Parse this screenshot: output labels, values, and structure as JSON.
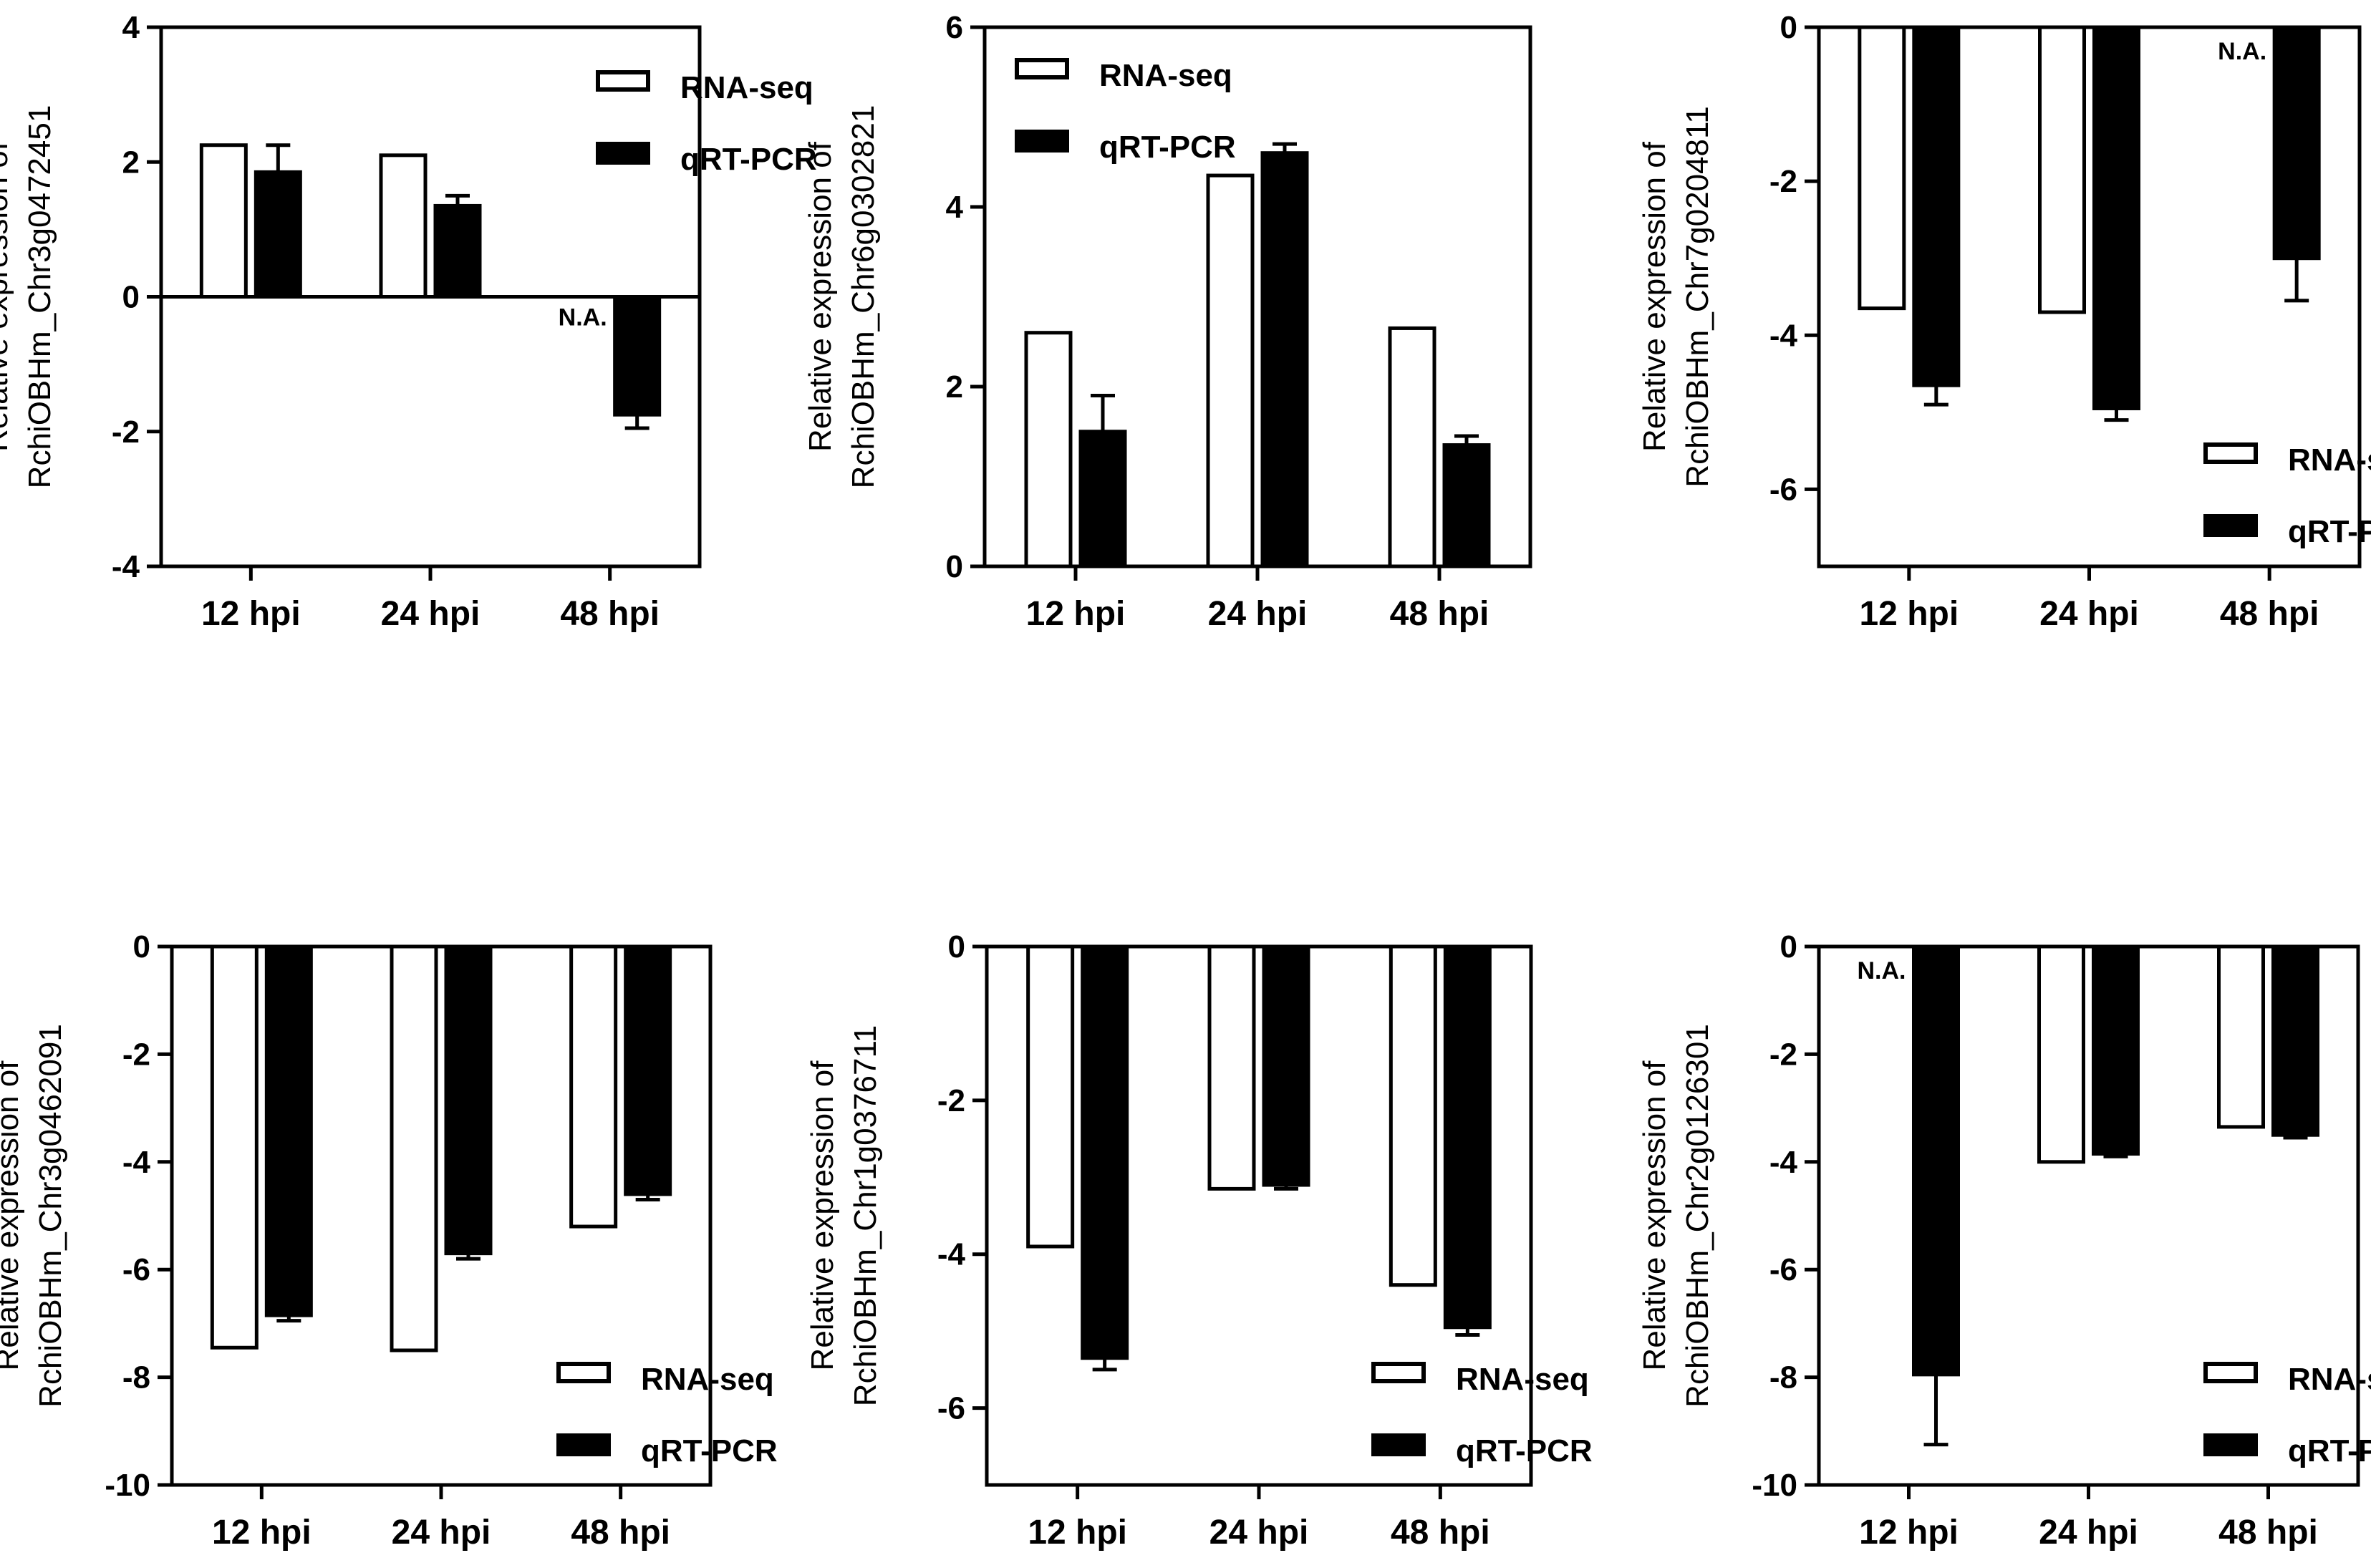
{
  "colors": {
    "rna_seq_fill": "#ffffff",
    "qrt_pcr_fill": "#000000",
    "stroke": "#000000"
  },
  "chart_data": [
    {
      "type": "bar",
      "ylabel_lines": [
        "Relative expression of",
        "RchiOBHm_Chr3g0472451"
      ],
      "categories": [
        "12 hpi",
        "24 hpi",
        "48 hpi"
      ],
      "ylim": [
        -4,
        4
      ],
      "yticks": [
        -4,
        -2,
        0,
        2,
        4
      ],
      "tick_labels": [
        "-4",
        "-2",
        "0",
        "2",
        "4"
      ],
      "legend": {
        "position": "top-right",
        "entries": [
          "RNA-seq",
          "qRT-PCR"
        ]
      },
      "series": [
        {
          "name": "RNA-seq",
          "values": [
            2.25,
            2.1,
            null
          ]
        },
        {
          "name": "qRT-PCR",
          "values": [
            1.85,
            1.35,
            -1.75
          ],
          "errors": [
            0.4,
            0.15,
            0.2
          ]
        }
      ],
      "annotations": [
        {
          "text": "N.A.",
          "series": 0,
          "category": 2
        }
      ]
    },
    {
      "type": "bar",
      "ylabel_lines": [
        "Relative expression of",
        "RchiOBHm_Chr6g0302821"
      ],
      "categories": [
        "12 hpi",
        "24 hpi",
        "48 hpi"
      ],
      "ylim": [
        0,
        6
      ],
      "yticks": [
        0,
        2,
        4,
        6
      ],
      "tick_labels": [
        "0",
        "2",
        "4",
        "6"
      ],
      "legend": {
        "position": "top-left",
        "entries": [
          "RNA-seq",
          "qRT-PCR"
        ]
      },
      "series": [
        {
          "name": "RNA-seq",
          "values": [
            2.6,
            4.35,
            2.65
          ]
        },
        {
          "name": "qRT-PCR",
          "values": [
            1.5,
            4.6,
            1.35
          ],
          "errors": [
            0.4,
            0.1,
            0.1
          ]
        }
      ],
      "annotations": []
    },
    {
      "type": "bar",
      "ylabel_lines": [
        "Relative expression of",
        "RchiOBHm_Chr7g0204811"
      ],
      "categories": [
        "12 hpi",
        "24 hpi",
        "48 hpi"
      ],
      "ylim": [
        -7,
        0
      ],
      "yticks": [
        -6,
        -4,
        -2,
        0
      ],
      "tick_labels": [
        "-6",
        "-4",
        "-2",
        "0"
      ],
      "legend": {
        "position": "bottom-right",
        "entries": [
          "RNA-seq",
          "qRT-PCR"
        ]
      },
      "series": [
        {
          "name": "RNA-seq",
          "values": [
            -3.65,
            -3.7,
            null
          ]
        },
        {
          "name": "qRT-PCR",
          "values": [
            -4.65,
            -4.95,
            -3.0
          ],
          "errors": [
            0.25,
            0.15,
            0.55
          ]
        }
      ],
      "annotations": [
        {
          "text": "N.A.",
          "series": 0,
          "category": 2
        }
      ]
    },
    {
      "type": "bar",
      "ylabel_lines": [
        "Relative expression of",
        "RchiOBHm_Chr3g0462091"
      ],
      "categories": [
        "12 hpi",
        "24 hpi",
        "48 hpi"
      ],
      "ylim": [
        -10,
        0
      ],
      "yticks": [
        -10,
        -8,
        -6,
        -4,
        -2,
        0
      ],
      "tick_labels": [
        "-10",
        "-8",
        "-6",
        "-4",
        "-2",
        "0"
      ],
      "legend": {
        "position": "bottom-right",
        "entries": [
          "RNA-seq",
          "qRT-PCR"
        ]
      },
      "series": [
        {
          "name": "RNA-seq",
          "values": [
            -7.45,
            -7.5,
            -5.2
          ]
        },
        {
          "name": "qRT-PCR",
          "values": [
            -6.85,
            -5.7,
            -4.6
          ],
          "errors": [
            0.1,
            0.1,
            0.1
          ]
        }
      ],
      "annotations": []
    },
    {
      "type": "bar",
      "ylabel_lines": [
        "Relative expression of",
        "RchiOBHm_Chr1g0376711"
      ],
      "categories": [
        "12 hpi",
        "24 hpi",
        "48 hpi"
      ],
      "ylim": [
        -7,
        0
      ],
      "yticks": [
        -6,
        -4,
        -2,
        0
      ],
      "tick_labels": [
        "-6",
        "-4",
        "-2",
        "0"
      ],
      "legend": {
        "position": "bottom-right",
        "entries": [
          "RNA-seq",
          "qRT-PCR"
        ]
      },
      "series": [
        {
          "name": "RNA-seq",
          "values": [
            -3.9,
            -3.15,
            -4.4
          ]
        },
        {
          "name": "qRT-PCR",
          "values": [
            -5.35,
            -3.1,
            -4.95
          ],
          "errors": [
            0.15,
            0.05,
            0.1
          ]
        }
      ],
      "annotations": []
    },
    {
      "type": "bar",
      "ylabel_lines": [
        "Relative expression of",
        "RchiOBHm_Chr2g0126301"
      ],
      "categories": [
        "12 hpi",
        "24 hpi",
        "48 hpi"
      ],
      "ylim": [
        -10,
        0
      ],
      "yticks": [
        -10,
        -8,
        -6,
        -4,
        -2,
        0
      ],
      "tick_labels": [
        "-10",
        "-8",
        "-6",
        "-4",
        "-2",
        "0"
      ],
      "legend": {
        "position": "bottom-right",
        "entries": [
          "RNA-seq",
          "qRT-PCR"
        ]
      },
      "series": [
        {
          "name": "RNA-seq",
          "values": [
            null,
            -4.0,
            -3.35
          ]
        },
        {
          "name": "qRT-PCR",
          "values": [
            -7.95,
            -3.85,
            -3.5
          ],
          "errors": [
            1.3,
            0.05,
            0.05
          ]
        }
      ],
      "annotations": [
        {
          "text": "N.A.",
          "series": 0,
          "category": 0
        }
      ]
    }
  ]
}
